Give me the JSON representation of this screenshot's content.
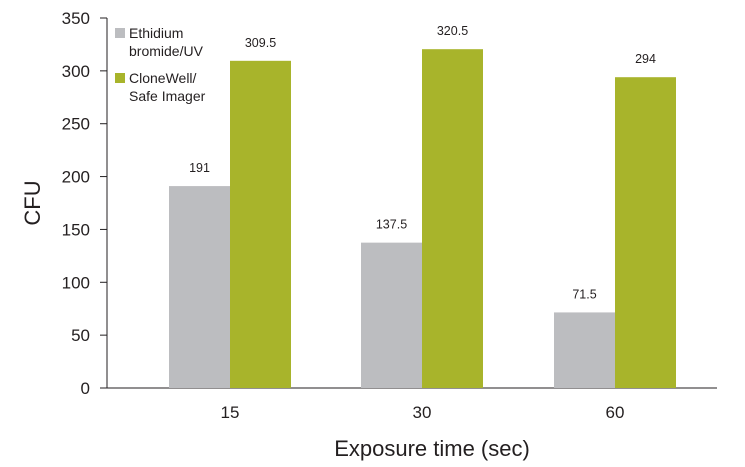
{
  "chart_data": {
    "type": "bar",
    "xlabel": "Exposure time (sec)",
    "ylabel": "CFU",
    "ylim": [
      0,
      350
    ],
    "yticks": [
      "0",
      "50",
      "100",
      "150",
      "200",
      "250",
      "300",
      "350"
    ],
    "categories": [
      "15",
      "30",
      "60"
    ],
    "legend_position": "top-left",
    "grid": false,
    "series": [
      {
        "name": "Ethidium bromide/UV",
        "legend_lines": [
          "Ethidium",
          "bromide/UV"
        ],
        "color": "#bcbdc0",
        "values": [
          191,
          137.5,
          71.5
        ],
        "labels": [
          "191",
          "137.5",
          "71.5"
        ]
      },
      {
        "name": "CloneWell/Safe Imager",
        "legend_lines": [
          "CloneWell/",
          "Safe Imager"
        ],
        "color": "#a8b42b",
        "values": [
          309.5,
          320.5,
          294
        ],
        "labels": [
          "309.5",
          "320.5",
          "294"
        ]
      }
    ]
  }
}
